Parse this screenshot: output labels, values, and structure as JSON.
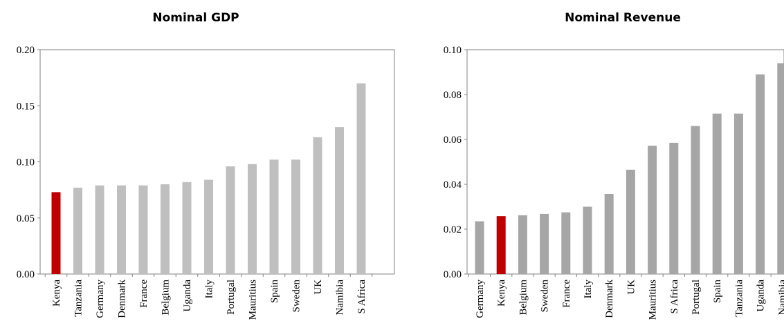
{
  "colors": {
    "highlight": "#C00000",
    "gdp_bar": "#BFBFBF",
    "revenue_bar": "#A6A6A6",
    "axis": "#808080"
  },
  "chart_data": [
    {
      "type": "bar",
      "title": "Nominal GDP",
      "xlabel": "",
      "ylabel": "",
      "categories": [
        "Kenya",
        "Tanzania",
        "Germany",
        "Denmark",
        "France",
        "Belgium",
        "Uganda",
        "Italy",
        "Portugal",
        "Mauritius",
        "Spain",
        "Sweden",
        "UK",
        "Namibia",
        "S Africa"
      ],
      "values": [
        0.073,
        0.077,
        0.079,
        0.079,
        0.079,
        0.08,
        0.082,
        0.084,
        0.096,
        0.098,
        0.102,
        0.102,
        0.122,
        0.131,
        0.17
      ],
      "highlight": "Kenya",
      "ylim": [
        0,
        0.2
      ],
      "yticks": [
        "0.00",
        "0.05",
        "0.10",
        "0.15",
        "0.20"
      ],
      "grid": false,
      "legend": "none"
    },
    {
      "type": "bar",
      "title": "Nominal Revenue",
      "xlabel": "",
      "ylabel": "",
      "categories": [
        "Germany",
        "Kenya",
        "Belgium",
        "Sweden",
        "France",
        "Italy",
        "Denmark",
        "UK",
        "Mauritius",
        "S Africa",
        "Portugal",
        "Spain",
        "Tanzania",
        "Uganda",
        "Namibia"
      ],
      "values": [
        0.0235,
        0.0258,
        0.0262,
        0.0268,
        0.0275,
        0.03,
        0.0357,
        0.0465,
        0.0572,
        0.0585,
        0.066,
        0.0715,
        0.0715,
        0.089,
        0.094
      ],
      "highlight": "Kenya",
      "ylim": [
        0,
        0.1
      ],
      "yticks": [
        "0.00",
        "0.02",
        "0.04",
        "0.06",
        "0.08",
        "0.10"
      ],
      "grid": false,
      "legend": "none"
    }
  ]
}
